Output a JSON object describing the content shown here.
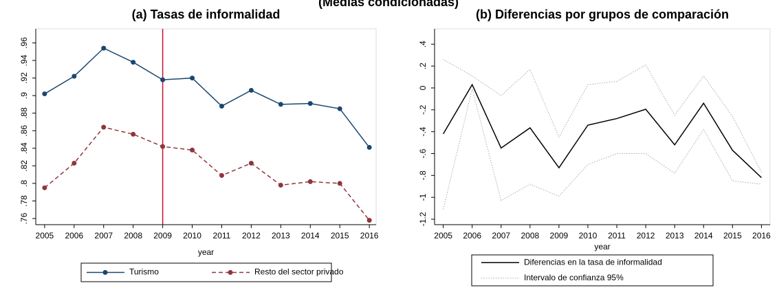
{
  "title": "(Medias condicionadas)",
  "chart_data": [
    {
      "type": "line",
      "title": "(a) Tasas de informalidad",
      "x_label": "year",
      "x": [
        2005,
        2006,
        2007,
        2008,
        2009,
        2010,
        2011,
        2012,
        2013,
        2014,
        2015,
        2016
      ],
      "xlim": [
        2004.7,
        2016.23
      ],
      "xticks": [
        2005,
        2006,
        2007,
        2008,
        2009,
        2010,
        2011,
        2012,
        2013,
        2014,
        2015,
        2016
      ],
      "ylim": [
        0.753,
        0.976
      ],
      "yticks": [
        {
          "value": 0.76,
          "label": ".76"
        },
        {
          "value": 0.78,
          "label": ".78"
        },
        {
          "value": 0.8,
          "label": ".8"
        },
        {
          "value": 0.82,
          "label": ".82"
        },
        {
          "value": 0.84,
          "label": ".84"
        },
        {
          "value": 0.86,
          "label": ".86"
        },
        {
          "value": 0.88,
          "label": ".88"
        },
        {
          "value": 0.9,
          "label": ".9"
        },
        {
          "value": 0.92,
          "label": ".92"
        },
        {
          "value": 0.94,
          "label": ".94"
        },
        {
          "value": 0.96,
          "label": ".96"
        }
      ],
      "vline": {
        "x": 2009,
        "color": "#c8102e"
      },
      "series": [
        {
          "name": "Turismo",
          "color": "#1a476f",
          "dash": "solid",
          "markers": true,
          "values": [
            0.902,
            0.922,
            0.954,
            0.938,
            0.918,
            0.92,
            0.888,
            0.906,
            0.89,
            0.891,
            0.885,
            0.841
          ]
        },
        {
          "name": "Resto del sector privado",
          "color": "#90353b",
          "dash": "dashed",
          "markers": true,
          "values": [
            0.795,
            0.823,
            0.864,
            0.856,
            0.842,
            0.838,
            0.809,
            0.823,
            0.798,
            0.802,
            0.8,
            0.758
          ]
        }
      ]
    },
    {
      "type": "line",
      "title": "(b) Diferencias por grupos de comparación",
      "x_label": "year",
      "x": [
        2005,
        2006,
        2007,
        2008,
        2009,
        2010,
        2011,
        2012,
        2013,
        2014,
        2015,
        2016
      ],
      "xlim": [
        2004.7,
        2016.3
      ],
      "xticks": [
        2005,
        2006,
        2007,
        2008,
        2009,
        2010,
        2011,
        2012,
        2013,
        2014,
        2015,
        2016
      ],
      "ylim": [
        -1.25,
        0.54
      ],
      "yticks": [
        {
          "value": -1.2,
          "label": "-1.2"
        },
        {
          "value": -1,
          "label": "-1"
        },
        {
          "value": -0.8,
          "label": "-.8"
        },
        {
          "value": -0.6,
          "label": "-.6"
        },
        {
          "value": -0.4,
          "label": "-.4"
        },
        {
          "value": -0.2,
          "label": "-.2"
        },
        0,
        {
          "value": 0.2,
          "label": ".2"
        },
        {
          "value": 0.4,
          "label": ".4"
        }
      ],
      "series": [
        {
          "name": "Diferencias en la tasa de informalidad",
          "color": "#000000",
          "dash": "solid",
          "markers": false,
          "values": [
            -0.42,
            0.03,
            -0.55,
            -0.365,
            -0.73,
            -0.34,
            -0.28,
            -0.195,
            -0.52,
            -0.14,
            -0.57,
            -0.82
          ]
        },
        {
          "name": "Intervalo de confianza 95%",
          "color": "#aaaaaa",
          "dash": "dotted",
          "markers": false,
          "upper": [
            0.26,
            0.11,
            -0.07,
            0.17,
            -0.45,
            0.03,
            0.06,
            0.21,
            -0.25,
            0.11,
            -0.26,
            -0.77
          ],
          "lower": [
            -1.11,
            -0.01,
            -1.03,
            -0.88,
            -0.99,
            -0.7,
            -0.6,
            -0.6,
            -0.78,
            -0.38,
            -0.85,
            -0.88
          ]
        }
      ]
    }
  ]
}
